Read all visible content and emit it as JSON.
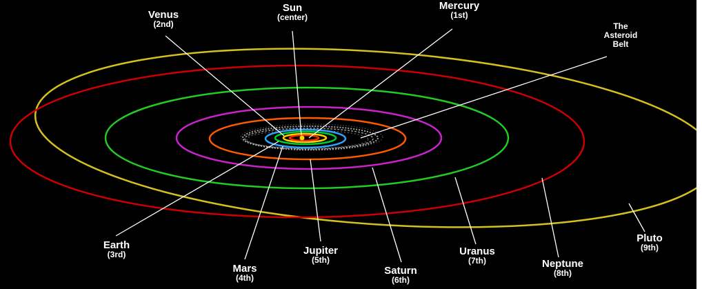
{
  "colors": {
    "background": "#000000",
    "text": "#ffffff",
    "pointer_line": "#ffffff",
    "sun": "#ffd400",
    "mercury_orbit": "#ff2a00",
    "venus_orbit": "#ffd400",
    "earth_orbit": "#00cc33",
    "mars_orbit": "#2fa3ff",
    "asteroid_belt": "#bfbfbf",
    "jupiter_orbit": "#ff5a00",
    "saturn_orbit": "#cc22cc",
    "uranus_orbit": "#22cc22",
    "neptune_orbit": "#cc0000",
    "pluto_orbit": "#d6c020"
  },
  "labels": {
    "sun": {
      "name": "Sun",
      "sub": "(center)"
    },
    "mercury": {
      "name": "Mercury",
      "sub": "(1st)"
    },
    "venus": {
      "name": "Venus",
      "sub": "(2nd)"
    },
    "earth": {
      "name": "Earth",
      "sub": "(3rd)"
    },
    "mars": {
      "name": "Mars",
      "sub": "(4th)"
    },
    "jupiter": {
      "name": "Jupiter",
      "sub": "(5th)"
    },
    "saturn": {
      "name": "Saturn",
      "sub": "(6th)"
    },
    "uranus": {
      "name": "Uranus",
      "sub": "(7th)"
    },
    "neptune": {
      "name": "Neptune",
      "sub": "(8th)"
    },
    "pluto": {
      "name": "Pluto",
      "sub": "(9th)"
    },
    "asteroid_belt": {
      "line1": "The",
      "line2": "Asteroid",
      "line3": "Belt"
    }
  }
}
